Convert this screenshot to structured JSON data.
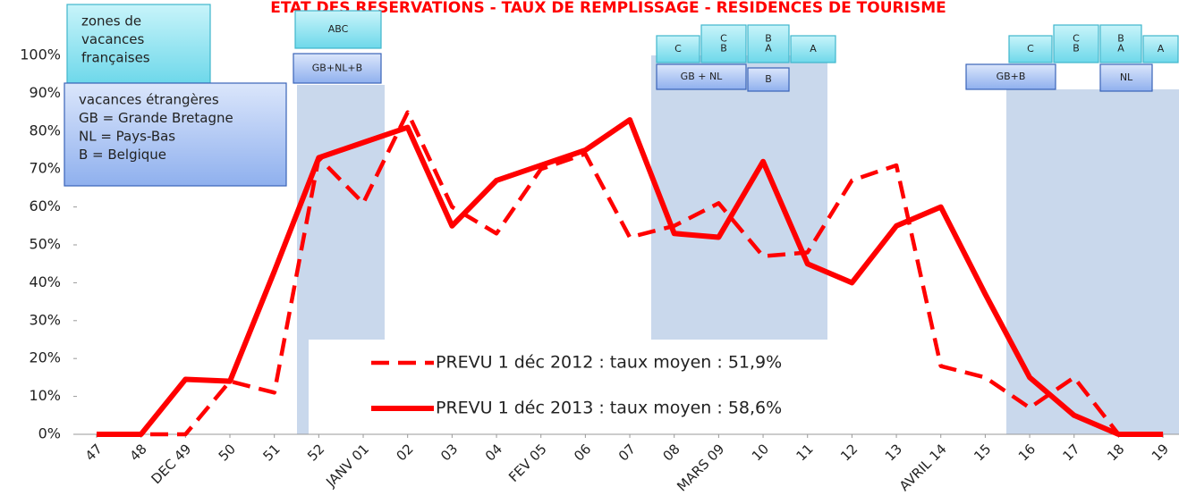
{
  "chart_data": {
    "type": "line",
    "title": "ETAT DES RESERVATIONS - TAUX DE REMPLISSAGE  - RESIDENCES DE TOURISME",
    "categories": [
      "47",
      "48",
      "DEC 49",
      "50",
      "51",
      "52",
      "JANV 01",
      "02",
      "03",
      "04",
      "FEV 05",
      "06",
      "07",
      "08",
      "MARS 09",
      "10",
      "11",
      "12",
      "13",
      "AVRIL 14",
      "15",
      "16",
      "17",
      "18",
      "19"
    ],
    "series": [
      {
        "name": "PREVU 1 déc 2012 : taux moyen : 51,9%",
        "color": "#ff0000",
        "dash": true,
        "values": [
          0,
          0,
          0,
          14,
          11,
          73,
          61,
          85,
          60,
          53,
          70,
          74,
          52,
          55,
          61,
          47,
          48,
          67,
          71,
          18,
          15,
          7,
          15,
          0,
          0
        ]
      },
      {
        "name": "PREVU 1 déc 2013 : taux moyen : 58,6%",
        "color": "#ff0000",
        "dash": false,
        "values": [
          0,
          0,
          14.5,
          14,
          43,
          73,
          77,
          81,
          55,
          67,
          71,
          75,
          83,
          53,
          52,
          72,
          45,
          40,
          55,
          60,
          37,
          15,
          5,
          0,
          0
        ]
      }
    ],
    "ylim": [
      0,
      100
    ],
    "yticks": [
      {
        "value": 0,
        "label": "0%"
      },
      {
        "value": 10,
        "label": "10%"
      },
      {
        "value": 20,
        "label": "20%"
      },
      {
        "value": 30,
        "label": "30%"
      },
      {
        "value": 40,
        "label": "40%"
      },
      {
        "value": 50,
        "label": "50%"
      },
      {
        "value": 60,
        "label": "60%"
      },
      {
        "value": 70,
        "label": "70%"
      },
      {
        "value": 80,
        "label": "80%"
      },
      {
        "value": 90,
        "label": "90%"
      },
      {
        "value": 100,
        "label": "100%"
      }
    ],
    "annotations": [
      [
        "zones de",
        "vacances",
        "françaises"
      ],
      [
        "vacances étrangères",
        "GB = Grande Bretagne",
        "NL = Pays-Bas",
        "B = Belgique"
      ],
      [
        "ABC"
      ],
      [
        "GB+NL+B"
      ],
      [
        "C"
      ],
      [
        "C",
        "B"
      ],
      [
        "B",
        "A"
      ],
      [
        "A"
      ],
      [
        "GB + NL"
      ],
      [
        "B"
      ],
      [
        "GB+B"
      ],
      [
        "C"
      ],
      [
        "C",
        "B"
      ],
      [
        "B",
        "A"
      ],
      [
        "A"
      ],
      [
        "NL"
      ]
    ]
  }
}
